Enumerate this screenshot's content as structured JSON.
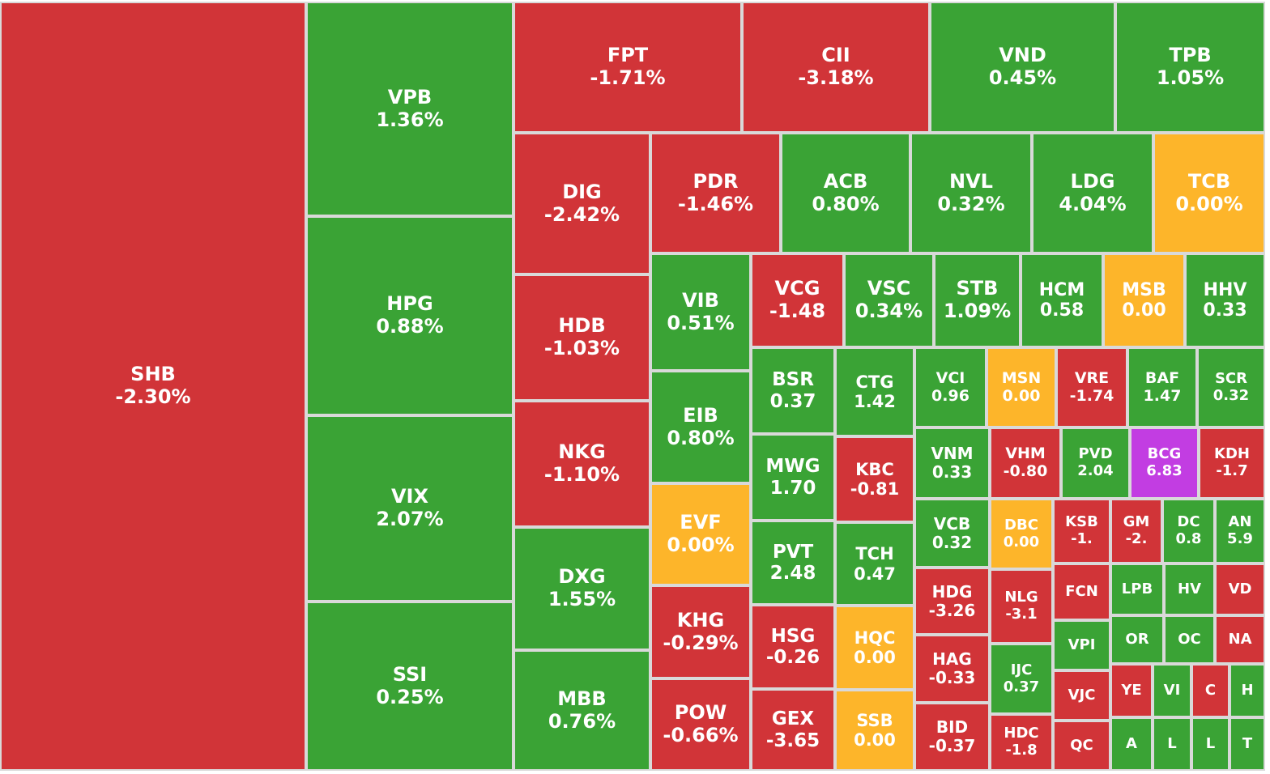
{
  "colors": {
    "down": "#d13438",
    "up": "#3aa335",
    "flat": "#fdb52a",
    "ceiling": "#c23de2"
  },
  "chart_data": {
    "type": "treemap",
    "tiles": [
      {
        "symbol": "SHB",
        "change": "-2.30%",
        "color": "down"
      },
      {
        "symbol": "VPB",
        "change": "1.36%",
        "color": "up"
      },
      {
        "symbol": "HPG",
        "change": "0.88%",
        "color": "up"
      },
      {
        "symbol": "VIX",
        "change": "2.07%",
        "color": "up"
      },
      {
        "symbol": "SSI",
        "change": "0.25%",
        "color": "up"
      },
      {
        "symbol": "FPT",
        "change": "-1.71%",
        "color": "down"
      },
      {
        "symbol": "CII",
        "change": "-3.18%",
        "color": "down"
      },
      {
        "symbol": "VND",
        "change": "0.45%",
        "color": "up"
      },
      {
        "symbol": "TPB",
        "change": "1.05%",
        "color": "up"
      },
      {
        "symbol": "DIG",
        "change": "-2.42%",
        "color": "down"
      },
      {
        "symbol": "HDB",
        "change": "-1.03%",
        "color": "down"
      },
      {
        "symbol": "NKG",
        "change": "-1.10%",
        "color": "down"
      },
      {
        "symbol": "DXG",
        "change": "1.55%",
        "color": "up"
      },
      {
        "symbol": "MBB",
        "change": "0.76%",
        "color": "up"
      },
      {
        "symbol": "PDR",
        "change": "-1.46%",
        "color": "down"
      },
      {
        "symbol": "ACB",
        "change": "0.80%",
        "color": "up"
      },
      {
        "symbol": "NVL",
        "change": "0.32%",
        "color": "up"
      },
      {
        "symbol": "LDG",
        "change": "4.04%",
        "color": "up"
      },
      {
        "symbol": "TCB",
        "change": "0.00%",
        "color": "flat"
      },
      {
        "symbol": "VIB",
        "change": "0.51%",
        "color": "up"
      },
      {
        "symbol": "EIB",
        "change": "0.80%",
        "color": "up"
      },
      {
        "symbol": "EVF",
        "change": "0.00%",
        "color": "flat"
      },
      {
        "symbol": "KHG",
        "change": "-0.29%",
        "color": "down"
      },
      {
        "symbol": "POW",
        "change": "-0.66%",
        "color": "down"
      },
      {
        "symbol": "VCG",
        "change": "-1.48",
        "color": "down"
      },
      {
        "symbol": "VSC",
        "change": "0.34%",
        "color": "up"
      },
      {
        "symbol": "STB",
        "change": "1.09%",
        "color": "up"
      },
      {
        "symbol": "HCM",
        "change": "0.58",
        "color": "up"
      },
      {
        "symbol": "MSB",
        "change": "0.00",
        "color": "flat"
      },
      {
        "symbol": "HHV",
        "change": "0.33",
        "color": "up"
      },
      {
        "symbol": "BSR",
        "change": "0.37",
        "color": "up"
      },
      {
        "symbol": "CTG",
        "change": "1.42",
        "color": "up"
      },
      {
        "symbol": "MWG",
        "change": "1.70",
        "color": "up"
      },
      {
        "symbol": "KBC",
        "change": "-0.81",
        "color": "down"
      },
      {
        "symbol": "PVT",
        "change": "2.48",
        "color": "up"
      },
      {
        "symbol": "TCH",
        "change": "0.47",
        "color": "up"
      },
      {
        "symbol": "HSG",
        "change": "-0.26",
        "color": "down"
      },
      {
        "symbol": "HQC",
        "change": "0.00",
        "color": "flat"
      },
      {
        "symbol": "GEX",
        "change": "-3.65",
        "color": "down"
      },
      {
        "symbol": "SSB",
        "change": "0.00",
        "color": "flat"
      },
      {
        "symbol": "VCI",
        "change": "0.96",
        "color": "up"
      },
      {
        "symbol": "MSN",
        "change": "0.00",
        "color": "flat"
      },
      {
        "symbol": "VRE",
        "change": "-1.74",
        "color": "down"
      },
      {
        "symbol": "BAF",
        "change": "1.47",
        "color": "up"
      },
      {
        "symbol": "SCR",
        "change": "0.32",
        "color": "up"
      },
      {
        "symbol": "VNM",
        "change": "0.33",
        "color": "up"
      },
      {
        "symbol": "VHM",
        "change": "-0.80",
        "color": "down"
      },
      {
        "symbol": "PVD",
        "change": "2.04",
        "color": "up"
      },
      {
        "symbol": "BCG",
        "change": "6.83",
        "color": "ceiling"
      },
      {
        "symbol": "KDH",
        "change": "-1.7",
        "color": "down"
      },
      {
        "symbol": "VCB",
        "change": "0.32",
        "color": "up"
      },
      {
        "symbol": "DBC",
        "change": "0.00",
        "color": "flat"
      },
      {
        "symbol": "KSB",
        "change": "-1.",
        "color": "down"
      },
      {
        "symbol": "GM",
        "change": "-2.",
        "color": "down"
      },
      {
        "symbol": "DC",
        "change": "0.8",
        "color": "up"
      },
      {
        "symbol": "AN",
        "change": "5.9",
        "color": "up"
      },
      {
        "symbol": "HDG",
        "change": "-3.26",
        "color": "down"
      },
      {
        "symbol": "NLG",
        "change": "-3.1",
        "color": "down"
      },
      {
        "symbol": "FCN",
        "change": "",
        "color": "down"
      },
      {
        "symbol": "LPB",
        "change": "",
        "color": "up"
      },
      {
        "symbol": "HV",
        "change": "",
        "color": "up"
      },
      {
        "symbol": "VD",
        "change": "",
        "color": "down"
      },
      {
        "symbol": "HAG",
        "change": "-0.33",
        "color": "down"
      },
      {
        "symbol": "IJC",
        "change": "0.37",
        "color": "up"
      },
      {
        "symbol": "VPI",
        "change": "",
        "color": "up"
      },
      {
        "symbol": "OR",
        "change": "",
        "color": "up"
      },
      {
        "symbol": "OC",
        "change": "",
        "color": "up"
      },
      {
        "symbol": "NA",
        "change": "",
        "color": "down"
      },
      {
        "symbol": "BID",
        "change": "-0.37",
        "color": "down"
      },
      {
        "symbol": "HDC",
        "change": "-1.8",
        "color": "down"
      },
      {
        "symbol": "VJC",
        "change": "",
        "color": "down"
      },
      {
        "symbol": "YE",
        "change": "",
        "color": "down"
      },
      {
        "symbol": "VI",
        "change": "",
        "color": "up"
      },
      {
        "symbol": "C",
        "change": "",
        "color": "down"
      },
      {
        "symbol": "H",
        "change": "",
        "color": "up"
      },
      {
        "symbol": "QC",
        "change": "",
        "color": "down"
      },
      {
        "symbol": "A",
        "change": "",
        "color": "up"
      },
      {
        "symbol": "L",
        "change": "",
        "color": "up"
      },
      {
        "symbol": "L",
        "change": "",
        "color": "up"
      },
      {
        "symbol": "T",
        "change": "",
        "color": "up"
      }
    ]
  }
}
